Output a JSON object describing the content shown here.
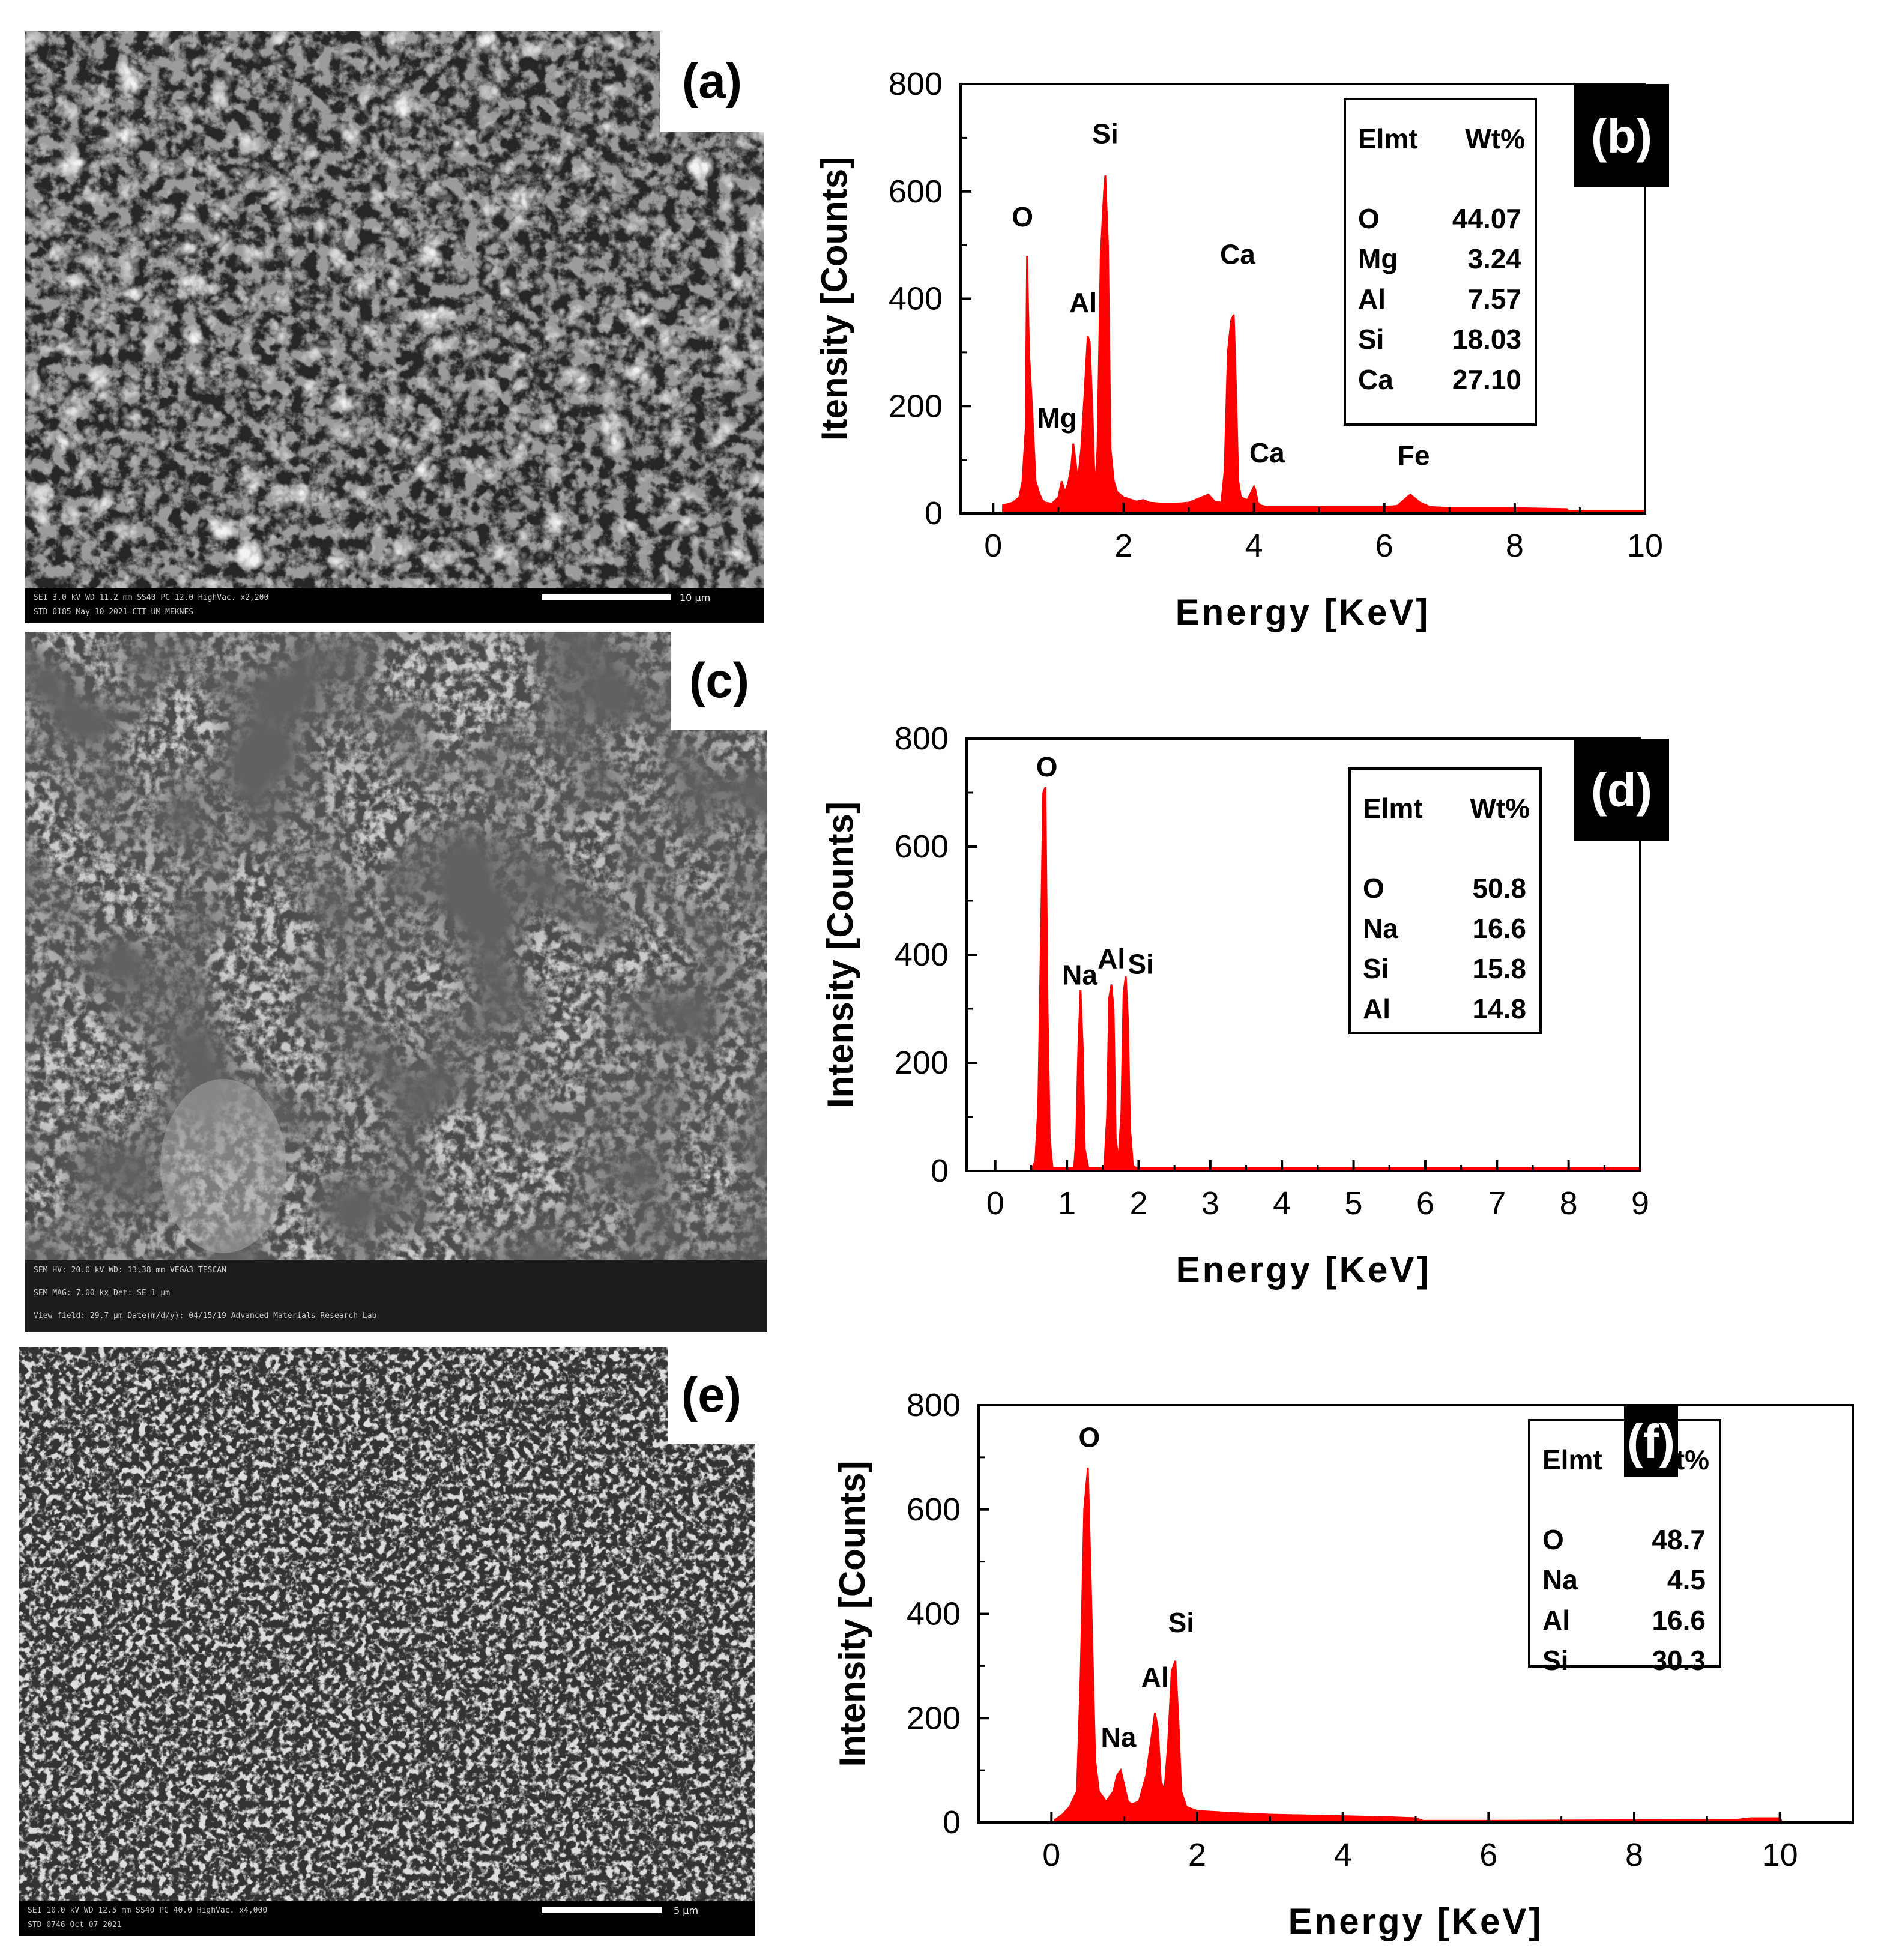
{
  "sem_images": [
    {
      "id": "a",
      "label": "(a)",
      "info_lines": [
        "SEI   3.0 kV   WD 11.2 mm   SS40   PC 12.0   HighVac.   x2,200",
        "STD   0185   May 10 2021   CTT-UM-MEKNES"
      ],
      "scale_label": "10 µm",
      "tone": "dark"
    },
    {
      "id": "c",
      "label": "(c)",
      "info_lines": [
        "SEM HV: 20.0 kV     WD: 13.38 mm                              VEGA3 TESCAN",
        "SEM MAG: 7.00 kx     Det: SE        1 µm",
        "View field: 29.7 µm   Date(m/d/y): 04/15/19     Advanced Materials Research Lab"
      ],
      "scale_label": "",
      "tone": "medium"
    },
    {
      "id": "e",
      "label": "(e)",
      "info_lines": [
        "SEI   10.0 kV   WD 12.5 mm   SS40   PC 40.0   HighVac.   x4,000",
        "STD   0746   Oct 07 2021"
      ],
      "scale_label": "5 µm",
      "tone": "grain"
    }
  ],
  "chart_data": [
    {
      "panel": "(b)",
      "type": "area",
      "color": "#ff0000",
      "xlabel": "Energy [KeV]",
      "ylabel": "Itensity [Counts]",
      "xlim": [
        -0.5,
        10
      ],
      "ylim": [
        0,
        800
      ],
      "xticks": [
        0,
        2,
        4,
        6,
        8,
        10
      ],
      "yticks": [
        0,
        200,
        400,
        600,
        800
      ],
      "x": [
        0.15,
        0.3,
        0.4,
        0.45,
        0.5,
        0.52,
        0.55,
        0.6,
        0.65,
        0.7,
        0.75,
        0.8,
        0.9,
        1.0,
        1.05,
        1.1,
        1.15,
        1.2,
        1.23,
        1.26,
        1.3,
        1.35,
        1.4,
        1.45,
        1.48,
        1.52,
        1.56,
        1.6,
        1.65,
        1.7,
        1.72,
        1.76,
        1.8,
        1.85,
        1.9,
        2.0,
        2.2,
        2.3,
        2.4,
        2.6,
        2.8,
        3.0,
        3.2,
        3.3,
        3.4,
        3.5,
        3.55,
        3.6,
        3.65,
        3.69,
        3.72,
        3.76,
        3.8,
        3.9,
        4.0,
        4.02,
        4.06,
        4.1,
        4.2,
        4.4,
        5.0,
        6.0,
        6.2,
        6.35,
        6.4,
        6.45,
        6.55,
        6.7,
        7.0,
        8.0,
        8.8,
        8.82,
        10.0
      ],
      "y": [
        15,
        20,
        30,
        60,
        160,
        480,
        300,
        190,
        60,
        40,
        25,
        20,
        18,
        30,
        60,
        40,
        55,
        90,
        130,
        100,
        60,
        120,
        220,
        330,
        320,
        200,
        40,
        120,
        480,
        600,
        630,
        500,
        120,
        60,
        40,
        30,
        22,
        25,
        20,
        18,
        18,
        20,
        30,
        35,
        22,
        20,
        80,
        300,
        360,
        370,
        250,
        60,
        30,
        25,
        50,
        45,
        20,
        15,
        12,
        12,
        12,
        12,
        14,
        30,
        35,
        30,
        20,
        12,
        10,
        10,
        8,
        5,
        5
      ],
      "peak_labels": [
        {
          "text": "O",
          "x": 0.45,
          "y": 535
        },
        {
          "text": "Mg",
          "x": 0.98,
          "y": 160
        },
        {
          "text": "Al",
          "x": 1.38,
          "y": 375
        },
        {
          "text": "Si",
          "x": 1.72,
          "y": 690
        },
        {
          "text": "Ca",
          "x": 3.75,
          "y": 465
        },
        {
          "text": "Ca",
          "x": 4.2,
          "y": 95
        },
        {
          "text": "Fe",
          "x": 6.45,
          "y": 90
        }
      ],
      "table": {
        "headers": [
          "Elmt",
          "Wt%"
        ],
        "rows": [
          [
            "O",
            "44.07"
          ],
          [
            "Mg",
            "3.24"
          ],
          [
            "Al",
            "7.57"
          ],
          [
            "Si",
            "18.03"
          ],
          [
            "Ca",
            "27.10"
          ]
        ]
      }
    },
    {
      "panel": "(d)",
      "type": "area",
      "color": "#ff0000",
      "xlabel": "Energy [KeV]",
      "ylabel": "Intensity [Counts]",
      "xlim": [
        -0.4,
        9
      ],
      "ylim": [
        0,
        800
      ],
      "xticks": [
        0,
        1,
        2,
        3,
        4,
        5,
        6,
        7,
        8,
        9
      ],
      "yticks": [
        0,
        200,
        400,
        600,
        800
      ],
      "x": [
        0.5,
        0.56,
        0.6,
        0.64,
        0.67,
        0.7,
        0.73,
        0.76,
        0.8,
        1.1,
        1.13,
        1.16,
        1.19,
        1.22,
        1.25,
        1.3,
        1.52,
        1.56,
        1.59,
        1.62,
        1.65,
        1.68,
        1.72,
        1.76,
        1.79,
        1.82,
        1.85,
        1.88,
        1.92,
        1.97,
        9.0
      ],
      "y": [
        0,
        20,
        120,
        450,
        700,
        710,
        300,
        60,
        5,
        5,
        60,
        230,
        335,
        230,
        40,
        5,
        5,
        100,
        320,
        345,
        300,
        60,
        20,
        110,
        330,
        360,
        280,
        80,
        10,
        5,
        5
      ],
      "peak_labels": [
        {
          "text": "O",
          "x": 0.72,
          "y": 730
        },
        {
          "text": "Na",
          "x": 1.18,
          "y": 345
        },
        {
          "text": "Al",
          "x": 1.62,
          "y": 375
        },
        {
          "text": "Si",
          "x": 2.03,
          "y": 365
        }
      ],
      "table": {
        "headers": [
          "Elmt",
          "Wt%"
        ],
        "rows": [
          [
            "O",
            "50.8"
          ],
          [
            "Na",
            "16.6"
          ],
          [
            "Si",
            "15.8"
          ],
          [
            "Al",
            "14.8"
          ]
        ]
      }
    },
    {
      "panel": "(f)",
      "type": "area",
      "color": "#ff0000",
      "xlabel": "Energy [KeV]",
      "ylabel": "Intensity [Counts]",
      "xlim": [
        -1,
        11
      ],
      "ylim": [
        0,
        800
      ],
      "xticks": [
        0,
        2,
        4,
        6,
        8,
        10
      ],
      "yticks": [
        0,
        200,
        400,
        600,
        800
      ],
      "x": [
        0.05,
        0.15,
        0.25,
        0.35,
        0.4,
        0.45,
        0.5,
        0.55,
        0.6,
        0.65,
        0.75,
        0.85,
        0.9,
        0.95,
        1.0,
        1.05,
        1.1,
        1.2,
        1.3,
        1.38,
        1.42,
        1.46,
        1.5,
        1.55,
        1.6,
        1.65,
        1.7,
        1.74,
        1.78,
        1.85,
        2.0,
        2.5,
        3.0,
        4.0,
        4.6,
        5.0,
        5.1,
        6.0,
        9.4,
        9.6,
        10.0,
        10.02
      ],
      "y": [
        5,
        15,
        30,
        60,
        280,
        600,
        680,
        400,
        120,
        60,
        40,
        60,
        90,
        100,
        70,
        40,
        35,
        40,
        90,
        170,
        210,
        180,
        80,
        60,
        150,
        290,
        310,
        200,
        60,
        30,
        22,
        18,
        15,
        12,
        10,
        8,
        3,
        3,
        5,
        8,
        8,
        3
      ],
      "peak_labels": [
        {
          "text": "O",
          "x": 0.52,
          "y": 720
        },
        {
          "text": "Na",
          "x": 0.92,
          "y": 145
        },
        {
          "text": "Al",
          "x": 1.42,
          "y": 260
        },
        {
          "text": "Si",
          "x": 1.78,
          "y": 365
        }
      ],
      "table": {
        "headers": [
          "Elmt",
          "Wt%"
        ],
        "rows": [
          [
            "O",
            "48.7"
          ],
          [
            "Na",
            "4.5"
          ],
          [
            "Al",
            "16.6"
          ],
          [
            "Si",
            "30.3"
          ]
        ]
      }
    }
  ]
}
